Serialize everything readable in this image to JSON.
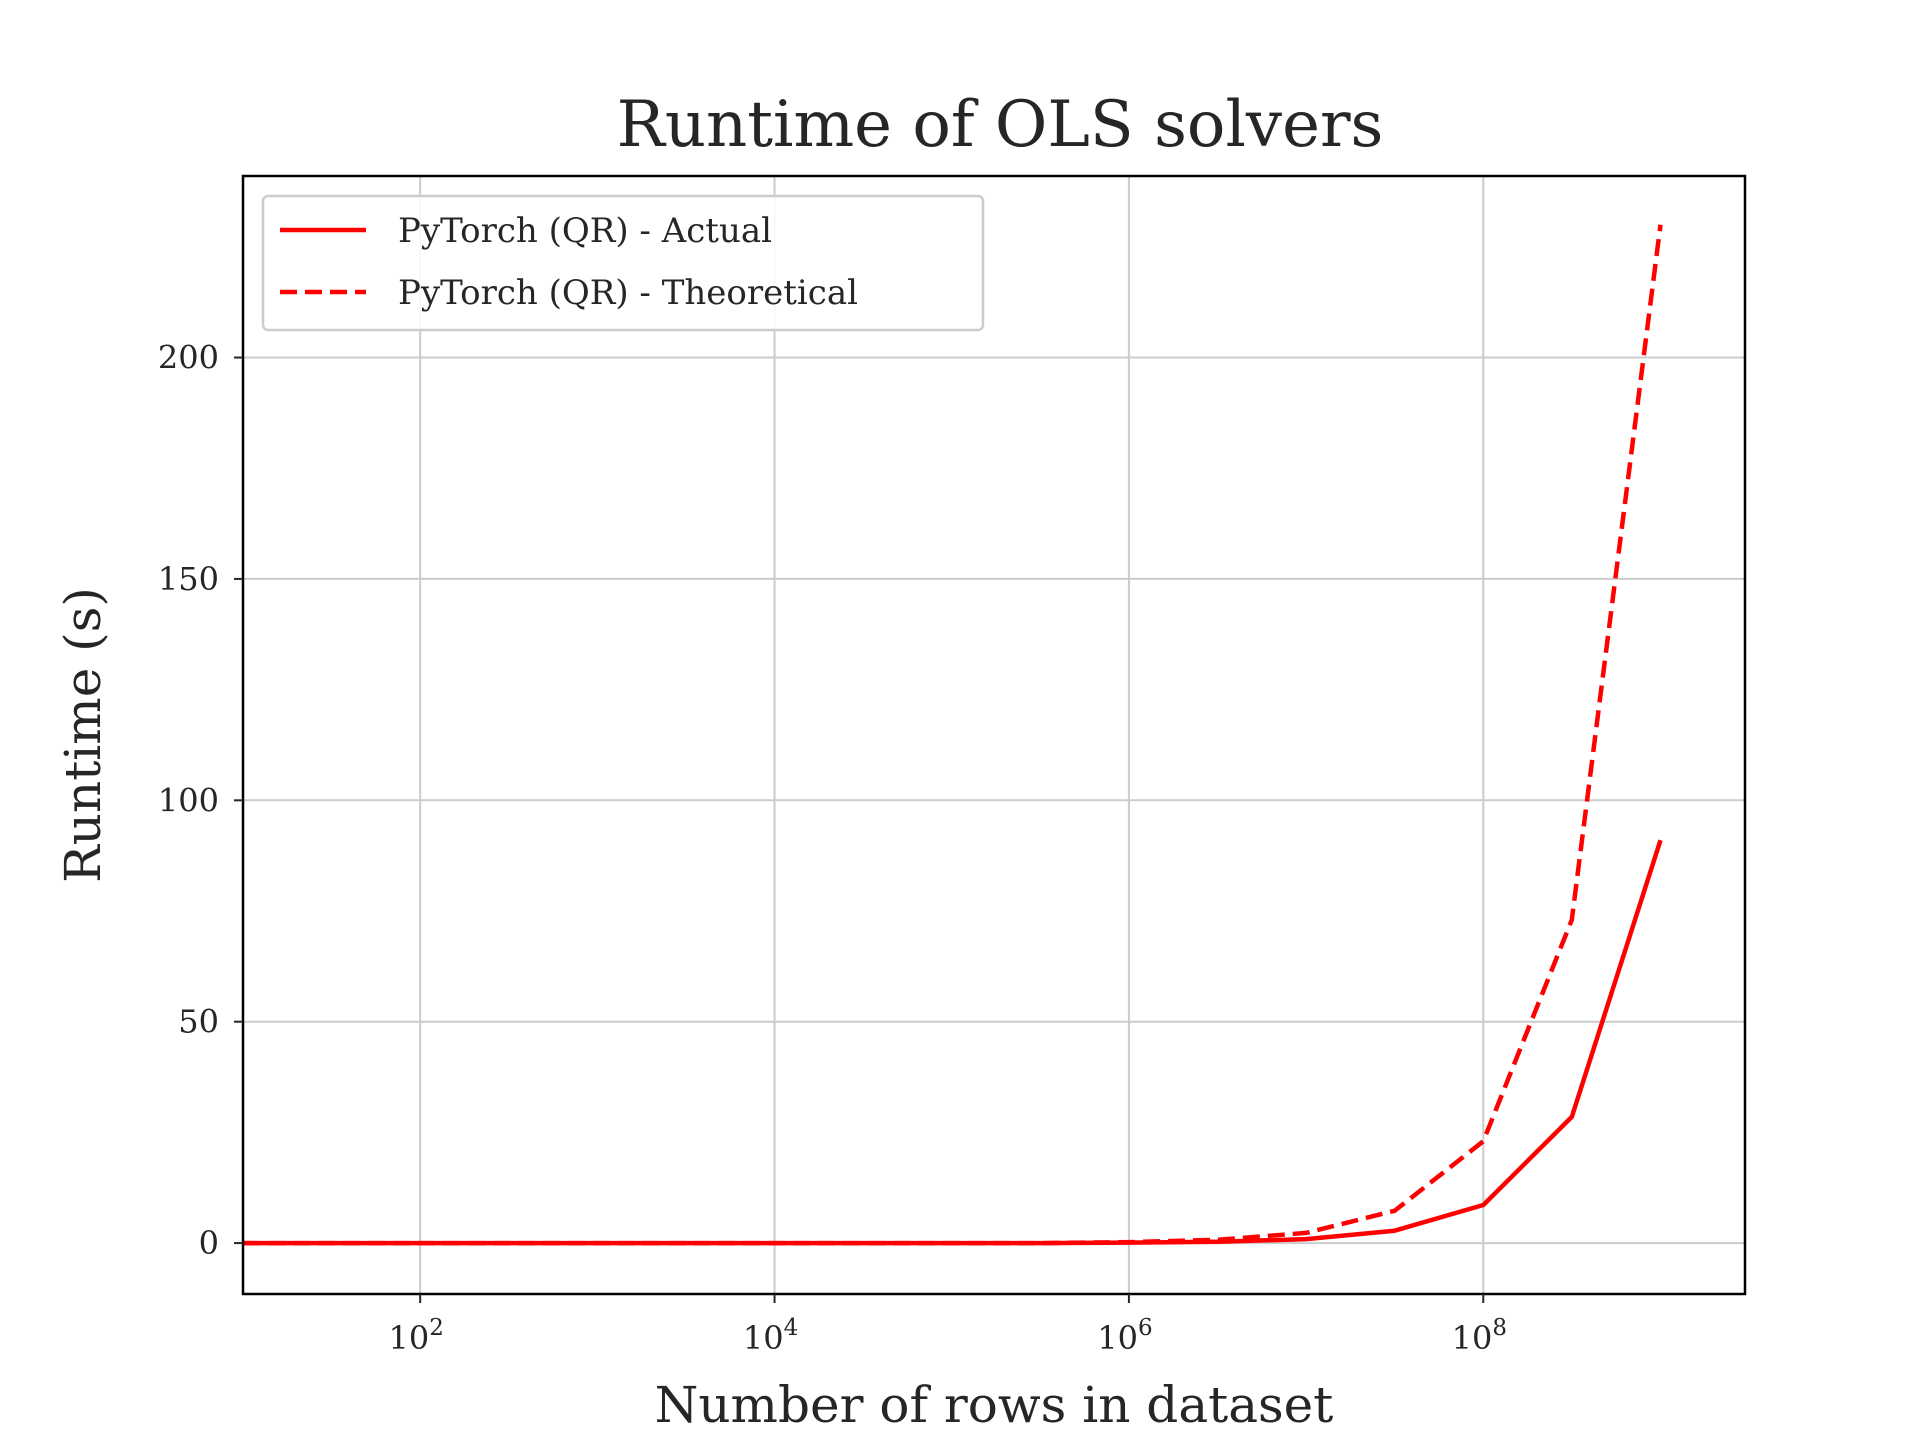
{
  "chart_data": {
    "type": "line",
    "title": "Runtime of OLS solvers",
    "xlabel": "Number of rows in dataset",
    "ylabel": "Runtime (s)",
    "xscale": "log",
    "xlim": [
      10,
      3000000000
    ],
    "ylim": [
      -11.5,
      241
    ],
    "grid": true,
    "legend_position": "top-left",
    "x_ticks": [
      {
        "value": 100,
        "base": "10",
        "exp": "2"
      },
      {
        "value": 10000,
        "base": "10",
        "exp": "4"
      },
      {
        "value": 1000000,
        "base": "10",
        "exp": "6"
      },
      {
        "value": 100000000,
        "base": "10",
        "exp": "8"
      }
    ],
    "y_ticks": [
      {
        "value": 0,
        "label": "0"
      },
      {
        "value": 50,
        "label": "50"
      },
      {
        "value": 100,
        "label": "100"
      },
      {
        "value": 150,
        "label": "150"
      },
      {
        "value": 200,
        "label": "200"
      }
    ],
    "x": [
      10,
      31.6,
      100,
      316,
      1000,
      3160,
      10000,
      31600,
      100000,
      316000,
      1000000,
      3160000,
      10000000,
      31600000,
      100000000,
      316000000,
      1000000000
    ],
    "series": [
      {
        "name": "PyTorch (QR) - Actual",
        "color": "#ff0000",
        "dash": "solid",
        "values": [
          0,
          0,
          0,
          0,
          0,
          0,
          0,
          0,
          0,
          0,
          0.1,
          0.3,
          0.9,
          2.8,
          8.6,
          28.5,
          91
        ]
      },
      {
        "name": "PyTorch (QR) - Theoretical",
        "color": "#ff0000",
        "dash": "dashed",
        "values": [
          0,
          0,
          0,
          0,
          0,
          0,
          0,
          0,
          0,
          0,
          0.23,
          0.73,
          2.3,
          7.3,
          23,
          73,
          230
        ]
      }
    ]
  }
}
